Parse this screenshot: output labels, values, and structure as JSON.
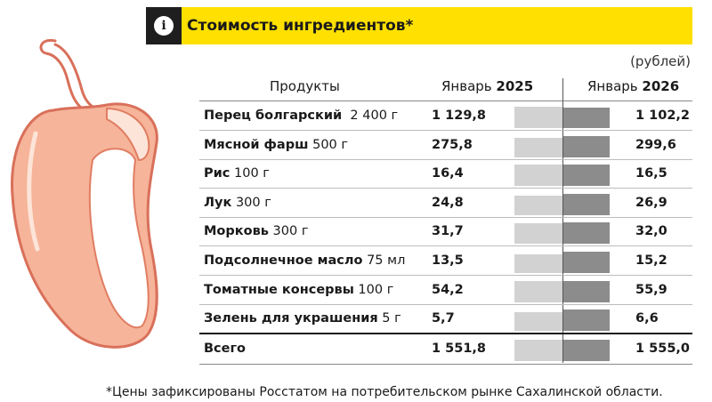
{
  "header": {
    "icon": "i",
    "title": "Стоимость ингредиентов*"
  },
  "unit": "(рублей)",
  "columns": {
    "products": "Продукты",
    "y2025_label": "Январь ",
    "y2025_year": "2025",
    "y2026_label": "Январь ",
    "y2026_year": "2026"
  },
  "rows": [
    {
      "name": "Перец болгарский",
      "qty": "  2 400 г",
      "v2025": "1 129,8",
      "v2026": "1 102,2"
    },
    {
      "name": "Мясной фарш",
      "qty": " 500 г",
      "v2025": "275,8",
      "v2026": "299,6"
    },
    {
      "name": "Рис",
      "qty": " 100 г",
      "v2025": "16,4",
      "v2026": "16,5"
    },
    {
      "name": "Лук",
      "qty": " 300 г",
      "v2025": "24,8",
      "v2026": "26,9"
    },
    {
      "name": "Морковь",
      "qty": " 300 г",
      "v2025": "31,7",
      "v2026": "32,0"
    },
    {
      "name": "Подсолнечное масло",
      "qty": " 75 мл",
      "v2025": "13,5",
      "v2026": "15,2"
    },
    {
      "name": "Томатные консервы",
      "qty": " 100 г",
      "v2025": "54,2",
      "v2026": "55,9"
    },
    {
      "name": "Зелень для украшения",
      "qty": " 5 г",
      "v2025": "5,7",
      "v2026": "6,6"
    },
    {
      "name": "Всего",
      "qty": "",
      "v2025": "1 551,8",
      "v2026": "1 555,0"
    }
  ],
  "footnote": "*Цены зафиксированы Росстатом на потребительском рынке Сахалинской области.",
  "colors": {
    "accent_yellow": "#ffe000",
    "header_dark": "#1e1e1e",
    "bar_2025": "#d2d2d2",
    "bar_2026": "#8c8c8c",
    "pepper_fill": "#f6b49a",
    "pepper_outline": "#d9705a"
  },
  "chart_data": {
    "type": "bar",
    "title": "Стоимость ингредиентов*",
    "ylabel": "(рублей)",
    "categories": [
      "Перец болгарский",
      "Мясной фарш",
      "Рис",
      "Лук",
      "Морковь",
      "Подсолнечное масло",
      "Томатные консервы",
      "Зелень для украшения",
      "Всего"
    ],
    "series": [
      {
        "name": "Январь 2025",
        "values": [
          1129.8,
          275.8,
          16.4,
          24.8,
          31.7,
          13.5,
          54.2,
          5.7,
          1551.8
        ]
      },
      {
        "name": "Январь 2026",
        "values": [
          1102.2,
          299.6,
          16.5,
          26.9,
          32.0,
          15.2,
          55.9,
          6.6,
          1555.0
        ]
      }
    ]
  }
}
